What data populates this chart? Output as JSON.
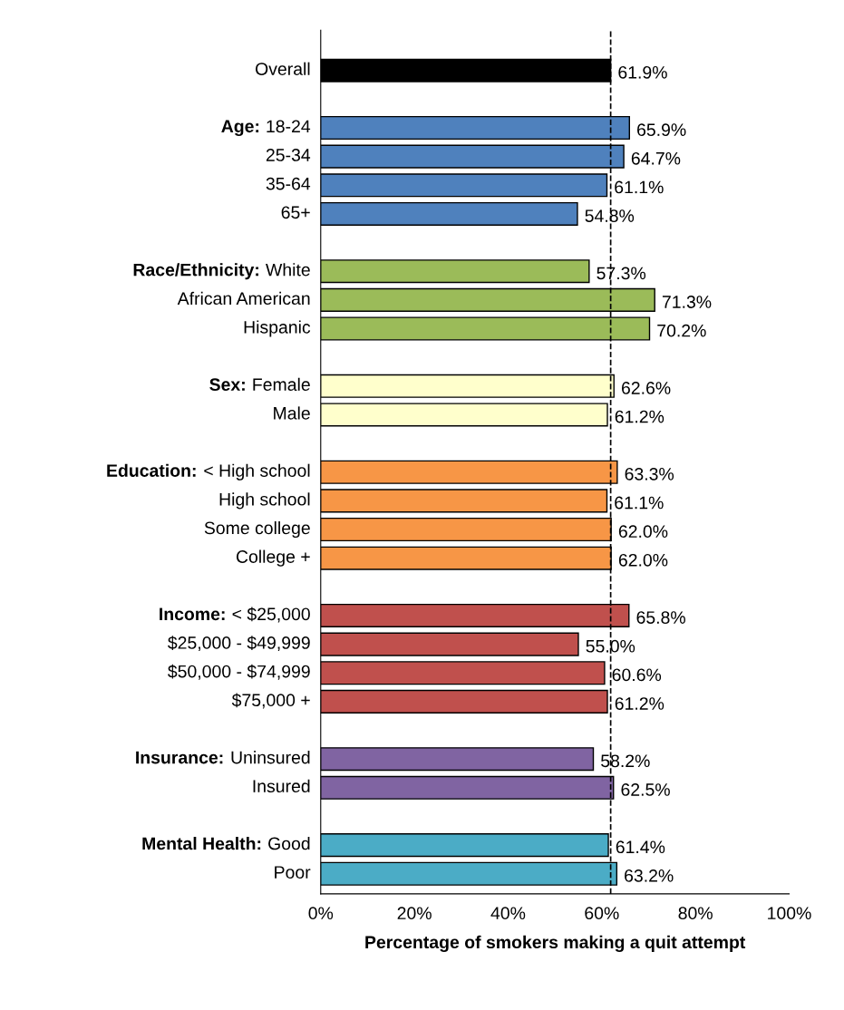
{
  "chart_data": {
    "type": "bar",
    "orientation": "horizontal",
    "xlabel": "Percentage of smokers making a quit attempt",
    "categories": [
      "Overall",
      null,
      "Age: 18-24",
      "25-34",
      "35-64",
      "65+",
      null,
      "Race/Ethnicity: White",
      "African American",
      "Hispanic",
      null,
      "Sex: Female",
      "Male",
      null,
      "Education: < High school",
      "High school",
      "Some college",
      "College +",
      null,
      "Income: < $25,000",
      "$25,000 - $49,999",
      "$50,000 - $74,999",
      "$75,000 +",
      null,
      "Insurance: Uninsured",
      "Insured",
      null,
      "Mental Health: Good",
      "Poor"
    ],
    "values": [
      61.9,
      null,
      65.9,
      64.7,
      61.1,
      54.8,
      null,
      57.3,
      71.3,
      70.2,
      null,
      62.6,
      61.2,
      null,
      63.3,
      61.1,
      62.0,
      62.0,
      null,
      65.8,
      55.0,
      60.6,
      61.2,
      null,
      58.2,
      62.5,
      null,
      61.4,
      63.2
    ],
    "value_labels": [
      "61.9%",
      null,
      "65.9%",
      "64.7%",
      "61.1%",
      "54.8%",
      null,
      "57.3%",
      "71.3%",
      "70.2%",
      null,
      "62.6%",
      "61.2%",
      null,
      "63.3%",
      "61.1%",
      "62.0%",
      "62.0%",
      null,
      "65.8%",
      "55.0%",
      "60.6%",
      "61.2%",
      null,
      "58.2%",
      "62.5%",
      null,
      "61.4%",
      "63.2%"
    ],
    "colors": [
      "#000000",
      null,
      "#4f81bd",
      "#4f81bd",
      "#4f81bd",
      "#4f81bd",
      null,
      "#9bbb59",
      "#9bbb59",
      "#9bbb59",
      null,
      "#ffffcc",
      "#ffffcc",
      null,
      "#f79646",
      "#f79646",
      "#f79646",
      "#f79646",
      null,
      "#c0504d",
      "#c0504d",
      "#c0504d",
      "#c0504d",
      null,
      "#8064a2",
      "#8064a2",
      null,
      "#4bacc6",
      "#4bacc6"
    ],
    "xlim": [
      0,
      100
    ],
    "xticks": [
      {
        "value": 0,
        "label": "0%"
      },
      {
        "value": 20,
        "label": "20%"
      },
      {
        "value": 40,
        "label": "40%"
      },
      {
        "value": 60,
        "label": "60%"
      },
      {
        "value": 80,
        "label": "80%"
      },
      {
        "value": 100,
        "label": "100%"
      }
    ],
    "ref_lines": [
      {
        "axis": "x",
        "value": 61.9,
        "label": null,
        "color": "#000000",
        "line_style": "dashed"
      }
    ],
    "grid": false
  }
}
